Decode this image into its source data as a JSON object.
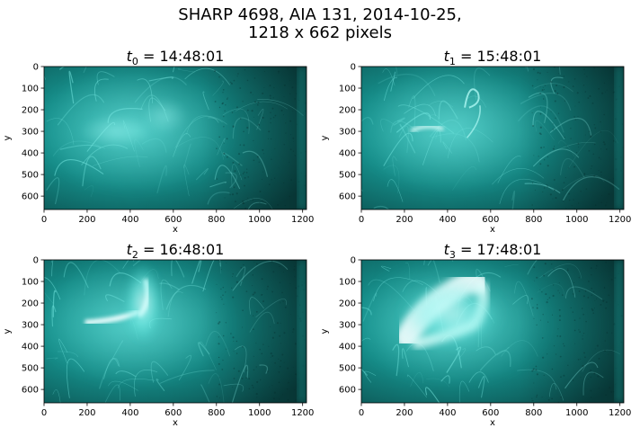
{
  "figure": {
    "title_line1": "SHARP 4698, AIA 131, 2014-10-25,",
    "title_line2": "1218 x 662 pixels"
  },
  "colors": {
    "cmap_dark": "#0a3a3a",
    "cmap_mid": "#1a9e9a",
    "cmap_bright": "#e0ffff"
  },
  "panels": [
    {
      "t_symbol": "t",
      "t_sub": "0",
      "time": " = 14:48:01",
      "xlabel": "x",
      "ylabel": "y",
      "xticks": [
        "0",
        "200",
        "400",
        "600",
        "800",
        "1000",
        "1200"
      ],
      "yticks": [
        "0",
        "100",
        "200",
        "300",
        "400",
        "500",
        "600"
      ]
    },
    {
      "t_symbol": "t",
      "t_sub": "1",
      "time": " = 15:48:01",
      "xlabel": "x",
      "ylabel": "y",
      "xticks": [
        "0",
        "200",
        "400",
        "600",
        "800",
        "1000",
        "1200"
      ],
      "yticks": [
        "0",
        "100",
        "200",
        "300",
        "400",
        "500",
        "600"
      ]
    },
    {
      "t_symbol": "t",
      "t_sub": "2",
      "time": " = 16:48:01",
      "xlabel": "x",
      "ylabel": "y",
      "xticks": [
        "0",
        "200",
        "400",
        "600",
        "800",
        "1000",
        "1200"
      ],
      "yticks": [
        "0",
        "100",
        "200",
        "300",
        "400",
        "500",
        "600"
      ]
    },
    {
      "t_symbol": "t",
      "t_sub": "3",
      "time": " = 17:48:01",
      "xlabel": "x",
      "ylabel": "y",
      "xticks": [
        "0",
        "200",
        "400",
        "600",
        "800",
        "1000",
        "1200"
      ],
      "yticks": [
        "0",
        "100",
        "200",
        "300",
        "400",
        "500",
        "600"
      ]
    }
  ]
}
